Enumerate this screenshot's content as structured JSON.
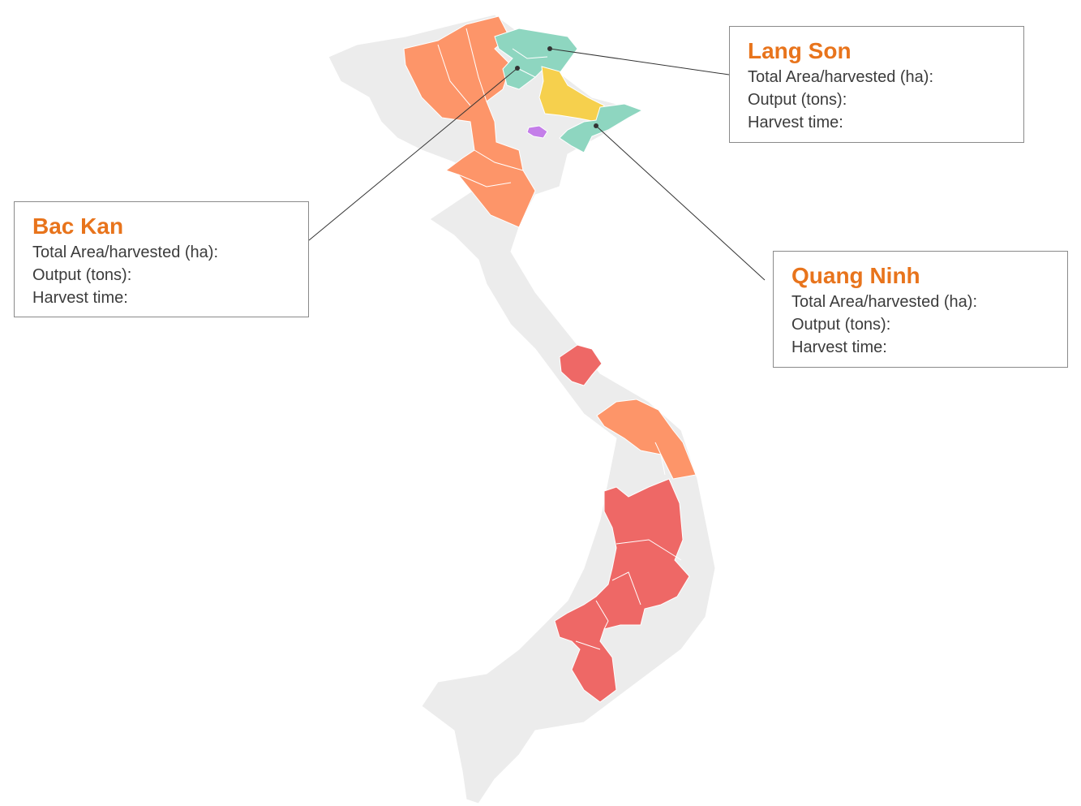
{
  "colors": {
    "land": "#ececec",
    "border": "#ffffff",
    "orange": "#fd9569",
    "teal": "#8ed6c0",
    "yellow": "#f6d04d",
    "purple": "#c47ee9",
    "red": "#ee6866",
    "title": "#e8741c",
    "leader": "#333333"
  },
  "callouts": [
    {
      "id": "bac-kan",
      "title": "Bac Kan",
      "rows": [
        "Total Area/harvested (ha):",
        "Output (tons):",
        "Harvest time:"
      ]
    },
    {
      "id": "lang-son",
      "title": "Lang Son",
      "rows": [
        "Total Area/harvested (ha):",
        "Output (tons):",
        "Harvest time:"
      ]
    },
    {
      "id": "quang-ninh",
      "title": "Quang Ninh",
      "rows": [
        "Total Area/harvested (ha):",
        "Output (tons):",
        "Harvest time:"
      ]
    }
  ]
}
